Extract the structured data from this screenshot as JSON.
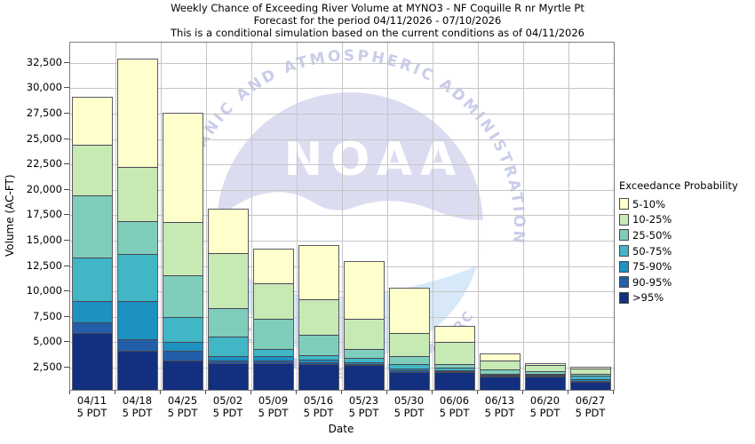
{
  "title": {
    "line1": "Weekly Chance of Exceeding River Volume at MYNO3 - NF Coquille R nr Myrtle Pt",
    "line2": "Forecast for the period 04/11/2026 - 07/10/2026",
    "line3": "This is a conditional simulation based on the current conditions as of 04/11/2026"
  },
  "watermark": {
    "arc_text_top": "NATIONAL OCEANIC AND ATMOSPHERIC ADMINISTRATION",
    "arc_text_bottom": "U.S. DEPARTMENT OF COMMERCE",
    "noaa_text": "NOAA",
    "circle_color": "#dcdcf1",
    "sea_color": "#d7e9f8",
    "swoosh_color": "#ffffff",
    "arc_text_color": "#c9cde9"
  },
  "chart_data": {
    "type": "bar",
    "stacked": true,
    "title": "Weekly Chance of Exceeding River Volume at MYNO3 - NF Coquille R nr Myrtle Pt",
    "xlabel": "Date",
    "ylabel": "Volume (AC-FT)",
    "ylim": [
      300,
      34500
    ],
    "yticks": [
      2500,
      5000,
      7500,
      10000,
      12500,
      15000,
      17500,
      20000,
      22500,
      25000,
      27500,
      30000,
      32500
    ],
    "grid": true,
    "legend_position": "right",
    "legend_title": "Exceedance Probability",
    "legend_entries": [
      {
        "label": "5-10%",
        "color": "#ffffcc"
      },
      {
        "label": "10-25%",
        "color": "#c7e9b4"
      },
      {
        "label": "25-50%",
        "color": "#7fcdbb"
      },
      {
        "label": "50-75%",
        "color": "#41b6c4"
      },
      {
        "label": "75-90%",
        "color": "#1d91c0"
      },
      {
        "label": "90-95%",
        "color": "#225ea8"
      },
      {
        "label": ">95%",
        "color": "#12307f"
      }
    ],
    "exceedance_boundaries_order": [
      "5%",
      "10%",
      "25%",
      "50%",
      "75%",
      "90%",
      "95%",
      "min"
    ],
    "bars": [
      {
        "date": "04/11",
        "time": "5 PDT",
        "levels": [
          29200,
          24500,
          19500,
          13400,
          9100,
          7000,
          6000,
          300
        ]
      },
      {
        "date": "04/18",
        "time": "5 PDT",
        "levels": [
          32900,
          22300,
          17000,
          13800,
          9100,
          5400,
          4200,
          300
        ]
      },
      {
        "date": "04/25",
        "time": "5 PDT",
        "levels": [
          27600,
          16900,
          11700,
          7600,
          5100,
          4200,
          3300,
          300
        ]
      },
      {
        "date": "05/02",
        "time": "5 PDT",
        "levels": [
          18100,
          13900,
          8400,
          5600,
          3700,
          3300,
          3000,
          300
        ]
      },
      {
        "date": "05/09",
        "time": "5 PDT",
        "levels": [
          14200,
          10900,
          7400,
          4400,
          3700,
          3300,
          3000,
          300
        ]
      },
      {
        "date": "05/16",
        "time": "5 PDT",
        "levels": [
          14600,
          9300,
          5800,
          3800,
          3400,
          3100,
          2900,
          300
        ]
      },
      {
        "date": "05/23",
        "time": "5 PDT",
        "levels": [
          13000,
          7400,
          4400,
          3500,
          3100,
          2900,
          2800,
          300
        ]
      },
      {
        "date": "05/30",
        "time": "5 PDT",
        "levels": [
          10400,
          6000,
          3700,
          2900,
          2500,
          2300,
          2150,
          300
        ]
      },
      {
        "date": "06/06",
        "time": "5 PDT",
        "levels": [
          6600,
          5100,
          2900,
          2600,
          2300,
          2200,
          2100,
          300
        ]
      },
      {
        "date": "06/13",
        "time": "5 PDT",
        "levels": [
          3900,
          3250,
          2400,
          2000,
          1830,
          1780,
          1720,
          300
        ]
      },
      {
        "date": "06/20",
        "time": "5 PDT",
        "levels": [
          2900,
          2800,
          2250,
          1950,
          1900,
          1870,
          1840,
          300
        ]
      },
      {
        "date": "06/27",
        "time": "5 PDT",
        "levels": [
          2600,
          2500,
          2000,
          1750,
          1450,
          1300,
          1150,
          300
        ]
      }
    ]
  }
}
